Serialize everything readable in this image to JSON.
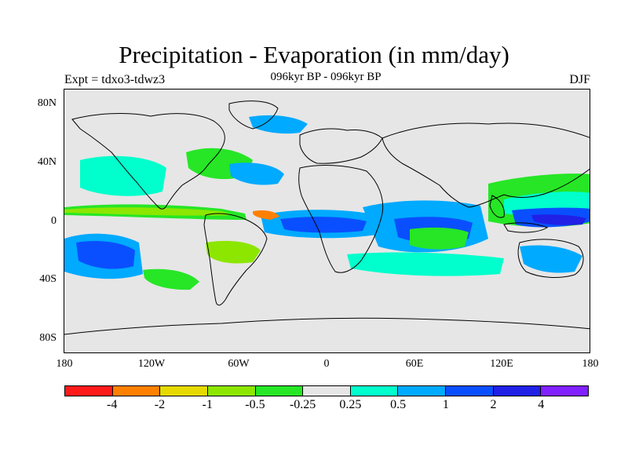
{
  "header": {
    "title": "Precipitation - Evaporation (in mm/day)",
    "subtitle": "096kyr BP - 096kyr BP",
    "experiment": "Expt = tdxo3-tdwz3",
    "season": "DJF"
  },
  "map": {
    "background_color": "#e6e6e6",
    "coastline_color": "#000000",
    "lat_labels": [
      "80N",
      "40N",
      "0",
      "40S",
      "80S"
    ],
    "lon_labels": [
      "180",
      "120W",
      "60W",
      "0",
      "60E",
      "120E",
      "180"
    ]
  },
  "colorbar": {
    "colors": [
      "#ff1a1a",
      "#ff8000",
      "#e6d900",
      "#8ce600",
      "#26e626",
      "#e6e6e6",
      "#00ffcc",
      "#00aaff",
      "#0a4fff",
      "#2020e6",
      "#8020ff"
    ],
    "labels": [
      "-4",
      "-2",
      "-1",
      "-0.5",
      "-0.25",
      "0.25",
      "0.5",
      "1",
      "2",
      "4"
    ]
  }
}
